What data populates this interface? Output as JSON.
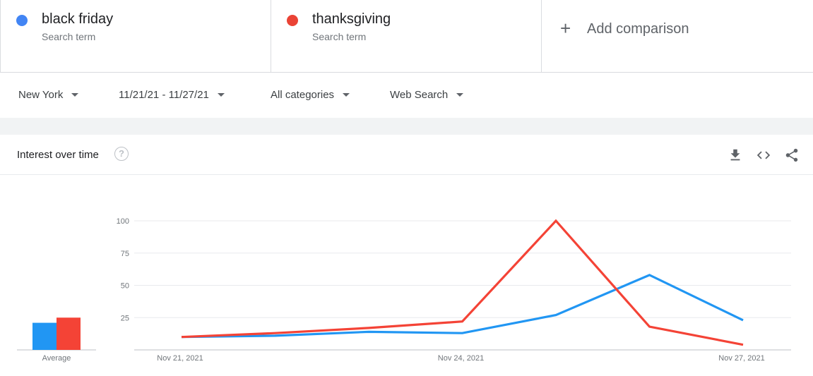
{
  "comparison": {
    "terms": [
      {
        "name": "black friday",
        "type": "Search term",
        "color": "#4285f4"
      },
      {
        "name": "thanksgiving",
        "type": "Search term",
        "color": "#ea4335"
      }
    ],
    "add_label": "Add comparison",
    "add_icon": "+"
  },
  "filters": {
    "region": "New York",
    "date_range": "11/21/21 - 11/27/21",
    "category": "All categories",
    "property": "Web Search"
  },
  "widget": {
    "title": "Interest over time",
    "help_icon": "?"
  },
  "chart_data": {
    "type": "line",
    "x": [
      "Nov 21, 2021",
      "Nov 22, 2021",
      "Nov 23, 2021",
      "Nov 24, 2021",
      "Nov 25, 2021",
      "Nov 26, 2021",
      "Nov 27, 2021"
    ],
    "x_tick_labels": [
      "Nov 21, 2021",
      "Nov 24, 2021",
      "Nov 27, 2021"
    ],
    "y_ticks": [
      25,
      50,
      75,
      100
    ],
    "ylim": [
      0,
      100
    ],
    "grid": true,
    "series": [
      {
        "name": "black friday",
        "color": "#2196f3",
        "values": [
          10,
          11,
          14,
          13,
          27,
          58,
          23
        ]
      },
      {
        "name": "thanksgiving",
        "color": "#f44336",
        "values": [
          10,
          13,
          17,
          22,
          100,
          18,
          4
        ]
      }
    ],
    "averages": {
      "label": "Average",
      "values": [
        21,
        25
      ]
    }
  }
}
